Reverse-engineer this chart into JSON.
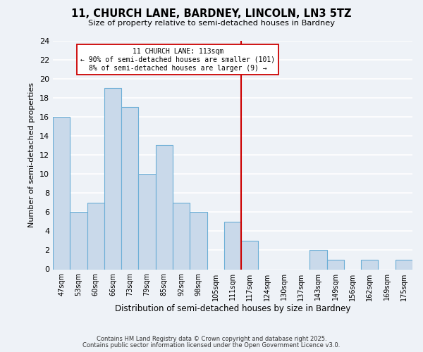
{
  "title_line1": "11, CHURCH LANE, BARDNEY, LINCOLN, LN3 5TZ",
  "title_line2": "Size of property relative to semi-detached houses in Bardney",
  "xlabel": "Distribution of semi-detached houses by size in Bardney",
  "ylabel": "Number of semi-detached properties",
  "categories": [
    "47sqm",
    "53sqm",
    "60sqm",
    "66sqm",
    "73sqm",
    "79sqm",
    "85sqm",
    "92sqm",
    "98sqm",
    "105sqm",
    "111sqm",
    "117sqm",
    "124sqm",
    "130sqm",
    "137sqm",
    "143sqm",
    "149sqm",
    "156sqm",
    "162sqm",
    "169sqm",
    "175sqm"
  ],
  "values": [
    16,
    6,
    7,
    19,
    17,
    10,
    13,
    7,
    6,
    0,
    5,
    3,
    0,
    0,
    0,
    2,
    1,
    0,
    1,
    0,
    1
  ],
  "bar_color": "#c9d9ea",
  "bar_edge_color": "#6baed6",
  "vline_color": "#cc0000",
  "annotation_text": "11 CHURCH LANE: 113sqm\n← 90% of semi-detached houses are smaller (101)\n8% of semi-detached houses are larger (9) →",
  "annotation_box_color": "#ffffff",
  "annotation_box_edge": "#cc0000",
  "ylim": [
    0,
    24
  ],
  "yticks": [
    0,
    2,
    4,
    6,
    8,
    10,
    12,
    14,
    16,
    18,
    20,
    22,
    24
  ],
  "background_color": "#eef2f7",
  "grid_color": "#ffffff",
  "footer_line1": "Contains HM Land Registry data © Crown copyright and database right 2025.",
  "footer_line2": "Contains public sector information licensed under the Open Government Licence v3.0."
}
